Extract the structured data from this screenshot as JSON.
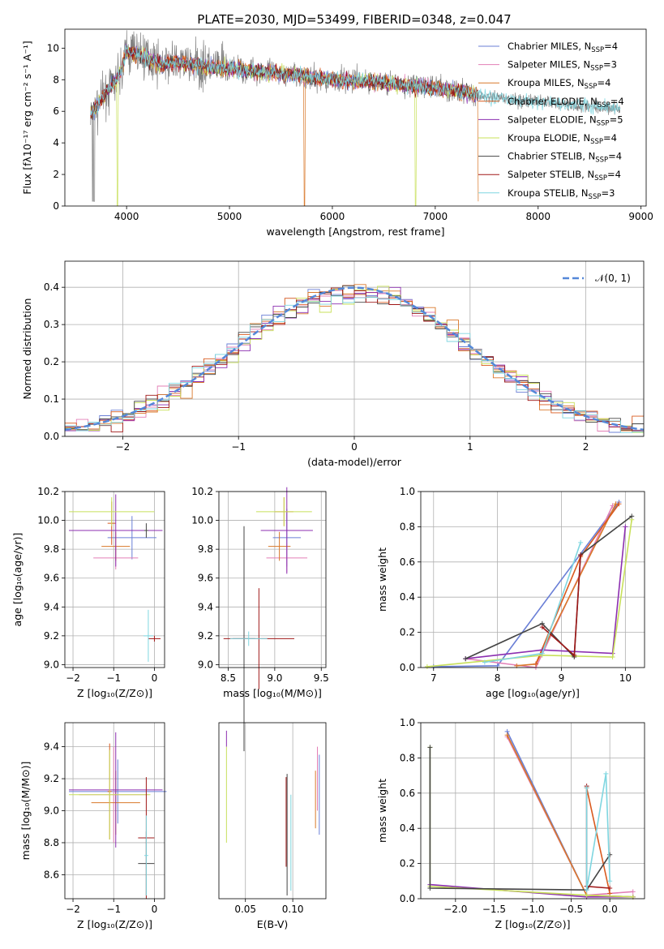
{
  "colors": {
    "chabrier_miles": "#6a7fd6",
    "salpeter_miles": "#e37fb6",
    "kroupa_miles": "#d9782a",
    "chabrier_elodie": "#d95a1e",
    "salpeter_elodie": "#8c2fb0",
    "kroupa_elodie": "#c8e05a",
    "chabrier_stelib": "#444444",
    "salpeter_stelib": "#a01818",
    "kroupa_stelib": "#7fd6e0",
    "data_spectrum": "#808080",
    "normal": "#5588d8",
    "grid": "#b0b0b0"
  },
  "legend_entries": [
    {
      "text": "Chabrier MILES, N",
      "sub": "SSP",
      "tail": "=4",
      "color": "#6a7fd6"
    },
    {
      "text": "Salpeter MILES, N",
      "sub": "SSP",
      "tail": "=3",
      "color": "#e37fb6"
    },
    {
      "text": "Kroupa MILES, N",
      "sub": "SSP",
      "tail": "=4",
      "color": "#d9782a"
    },
    {
      "text": "Chabrier ELODIE, N",
      "sub": "SSP",
      "tail": "=4",
      "color": "#d95a1e"
    },
    {
      "text": "Salpeter ELODIE, N",
      "sub": "SSP",
      "tail": "=5",
      "color": "#8c2fb0"
    },
    {
      "text": "Kroupa ELODIE, N",
      "sub": "SSP",
      "tail": "=4",
      "color": "#c8e05a"
    },
    {
      "text": "Chabrier STELIB, N",
      "sub": "SSP",
      "tail": "=4",
      "color": "#444444"
    },
    {
      "text": "Salpeter STELIB, N",
      "sub": "SSP",
      "tail": "=4",
      "color": "#a01818"
    },
    {
      "text": "Kroupa STELIB, N",
      "sub": "SSP",
      "tail": "=3",
      "color": "#7fd6e0"
    }
  ],
  "chart_data": [
    {
      "type": "line",
      "title": "PLATE=2030, MJD=53499, FIBERID=0348, z=0.047",
      "xlabel": "wavelength [Angstrom, rest frame]",
      "ylabel": "Flux [fλ10⁻¹⁷ erg cm⁻² s⁻¹ A⁻¹]",
      "xlim": [
        3400,
        9050
      ],
      "ylim": [
        0,
        11.2
      ],
      "xticks": [
        4000,
        5000,
        6000,
        7000,
        8000,
        9000
      ],
      "yticks": [
        0,
        2,
        4,
        6,
        8,
        10
      ],
      "legend_position": "upper right",
      "spectrum_x": [
        3650,
        3700,
        3800,
        3900,
        3950,
        4000,
        4100,
        4200,
        4300,
        4500,
        4800,
        5000,
        5500,
        6000,
        6500,
        7000,
        7300,
        7500,
        8000,
        8500,
        8800
      ],
      "spectrum_y": [
        5.8,
        6.2,
        7.2,
        8.0,
        8.6,
        9.8,
        9.6,
        9.4,
        9.0,
        9.1,
        8.8,
        8.7,
        8.4,
        8.0,
        7.8,
        7.5,
        7.2,
        6.9,
        6.6,
        6.3,
        6.2
      ],
      "model_end_x": [
        7420,
        7420,
        7420,
        7420,
        7420,
        7420,
        7420,
        7420,
        8800
      ]
    },
    {
      "type": "bar",
      "xlabel": "(data-model)/error",
      "ylabel": "Normed distribution",
      "xlim": [
        -2.5,
        2.5
      ],
      "ylim": [
        0,
        0.47
      ],
      "xticks": [
        -2,
        -1,
        0,
        1,
        2
      ],
      "yticks": [
        0.0,
        0.1,
        0.2,
        0.3,
        0.4
      ],
      "legend_label": "𝒩(0, 1)",
      "legend_position": "upper right",
      "bin_width": 0.1,
      "bin_start": -2.5
    },
    {
      "type": "scatter",
      "xlabel": "Z [log₁₀(Z/Z⊙)]",
      "ylabel": "age  [log₁₀(age/yr)]",
      "xlim": [
        -2.2,
        0.25
      ],
      "ylim": [
        8.98,
        10.2
      ],
      "xticks": [
        -2,
        -1,
        0
      ],
      "yticks": [
        9.0,
        9.2,
        9.4,
        9.6,
        9.8,
        10.0,
        10.2
      ],
      "points": [
        {
          "x": -0.55,
          "y": 9.88,
          "xerr": 0.6,
          "yerr": 0.15,
          "color": "#6a7fd6"
        },
        {
          "x": -0.95,
          "y": 9.74,
          "xerr": 0.55,
          "yerr": 0.08,
          "color": "#e37fb6"
        },
        {
          "x": -0.95,
          "y": 9.82,
          "xerr": 0.35,
          "yerr": 0.1,
          "color": "#d9782a"
        },
        {
          "x": -1.05,
          "y": 9.98,
          "xerr": 0.1,
          "yerr": 0.15,
          "color": "#d95a1e"
        },
        {
          "x": -0.95,
          "y": 9.93,
          "xerr": 1.15,
          "yerr": 0.25,
          "color": "#8c2fb0"
        },
        {
          "x": -1.05,
          "y": 10.06,
          "xerr": 1.05,
          "yerr": 0.1,
          "color": "#c8e05a"
        },
        {
          "x": -0.2,
          "y": 9.93,
          "xerr": 0.05,
          "yerr": 0.05,
          "color": "#444444"
        },
        {
          "x": 0.0,
          "y": 9.18,
          "xerr": 0.15,
          "yerr": 0.02,
          "color": "#a01818"
        },
        {
          "x": -0.15,
          "y": 9.2,
          "xerr": 0.12,
          "yerr": 0.18,
          "color": "#7fd6e0"
        }
      ]
    },
    {
      "type": "scatter",
      "xlabel": "mass [log₁₀(M/M⊙)]",
      "ylabel": "",
      "xlim": [
        8.4,
        9.55
      ],
      "ylim": [
        8.98,
        10.2
      ],
      "xticks": [
        8.5,
        9.0,
        9.5
      ],
      "yticks": [
        9.0,
        9.2,
        9.4,
        9.6,
        9.8,
        10.0,
        10.2
      ],
      "points": [
        {
          "x": 9.13,
          "y": 9.88,
          "xerr": 0.15,
          "yerr": 0.2,
          "color": "#6a7fd6"
        },
        {
          "x": 9.13,
          "y": 9.74,
          "xerr": 0.22,
          "yerr": 0.1,
          "color": "#e37fb6"
        },
        {
          "x": 9.05,
          "y": 9.82,
          "xerr": 0.12,
          "yerr": 0.1,
          "color": "#d9782a"
        },
        {
          "x": 9.1,
          "y": 10.06,
          "xerr": 0.1,
          "yerr": 0.1,
          "color": "#d95a1e"
        },
        {
          "x": 9.13,
          "y": 9.93,
          "xerr": 0.28,
          "yerr": 0.3,
          "color": "#8c2fb0"
        },
        {
          "x": 9.1,
          "y": 10.06,
          "xerr": 0.3,
          "yerr": 0.1,
          "color": "#c8e05a"
        },
        {
          "x": 8.67,
          "y": 9.18,
          "xerr": 0.12,
          "yerr": 0.78,
          "color": "#444444"
        },
        {
          "x": 8.83,
          "y": 9.18,
          "xerr": 0.38,
          "yerr": 0.35,
          "color": "#a01818"
        },
        {
          "x": 8.72,
          "y": 9.18,
          "xerr": 0.2,
          "yerr": 0.05,
          "color": "#7fd6e0"
        }
      ]
    },
    {
      "type": "line",
      "xlabel": "age  [log₁₀(age/yr)]",
      "ylabel": "mass weight",
      "xlim": [
        6.8,
        10.3
      ],
      "ylim": [
        0,
        1.0
      ],
      "xticks": [
        7,
        8,
        9,
        10
      ],
      "yticks": [
        0.0,
        0.2,
        0.4,
        0.6,
        0.8,
        1.0
      ],
      "series": [
        {
          "color": "#6a7fd6",
          "x": [
            7.0,
            8.0,
            9.9
          ],
          "y": [
            0.005,
            0.01,
            0.94
          ]
        },
        {
          "color": "#e37fb6",
          "x": [
            7.5,
            8.6,
            9.8
          ],
          "y": [
            0.05,
            0.0,
            0.92
          ]
        },
        {
          "color": "#d9782a",
          "x": [
            8.3,
            8.6,
            9.85
          ],
          "y": [
            0.01,
            0.02,
            0.93
          ]
        },
        {
          "color": "#d95a1e",
          "x": [
            8.6,
            9.3,
            9.9
          ],
          "y": [
            0.02,
            0.63,
            0.93
          ]
        },
        {
          "color": "#8c2fb0",
          "x": [
            7.5,
            8.7,
            9.8,
            10.0
          ],
          "y": [
            0.05,
            0.1,
            0.08,
            0.8
          ]
        },
        {
          "color": "#c8e05a",
          "x": [
            6.9,
            8.7,
            9.8,
            10.1
          ],
          "y": [
            0.005,
            0.07,
            0.06,
            0.84
          ]
        },
        {
          "color": "#444444",
          "x": [
            7.5,
            8.7,
            9.2,
            9.3,
            10.1
          ],
          "y": [
            0.05,
            0.25,
            0.06,
            0.64,
            0.86
          ]
        },
        {
          "color": "#a01818",
          "x": [
            8.7,
            9.2,
            9.3
          ],
          "y": [
            0.23,
            0.07,
            0.64
          ]
        },
        {
          "color": "#7fd6e0",
          "x": [
            7.8,
            8.7,
            9.3
          ],
          "y": [
            0.03,
            0.08,
            0.71
          ]
        }
      ]
    },
    {
      "type": "scatter",
      "xlabel": "Z [log₁₀(Z/Z⊙)]",
      "ylabel": "mass [log₁₀(M/M⊙)]",
      "xlim": [
        -2.2,
        0.25
      ],
      "ylim": [
        8.45,
        9.55
      ],
      "xticks": [
        -2,
        -1,
        0
      ],
      "yticks": [
        8.6,
        8.8,
        9.0,
        9.2,
        9.4
      ],
      "points": [
        {
          "x": -0.9,
          "y": 9.12,
          "xerr": 1.2,
          "yerr": 0.2,
          "color": "#6a7fd6"
        },
        {
          "x": -1.0,
          "y": 9.1,
          "xerr": 0.85,
          "yerr": 0.3,
          "color": "#e37fb6"
        },
        {
          "x": -0.95,
          "y": 9.05,
          "xerr": 0.6,
          "yerr": 0.2,
          "color": "#d9782a"
        },
        {
          "x": -1.1,
          "y": 9.12,
          "xerr": 0.05,
          "yerr": 0.3,
          "color": "#d95a1e"
        },
        {
          "x": -0.95,
          "y": 9.13,
          "xerr": 1.15,
          "yerr": 0.36,
          "color": "#8c2fb0"
        },
        {
          "x": -1.1,
          "y": 9.1,
          "xerr": 1.0,
          "yerr": 0.28,
          "color": "#c8e05a"
        },
        {
          "x": -0.2,
          "y": 8.67,
          "xerr": 0.2,
          "yerr": 0.2,
          "color": "#444444"
        },
        {
          "x": -0.2,
          "y": 8.83,
          "xerr": 0.2,
          "yerr": 0.38,
          "color": "#a01818"
        },
        {
          "x": -0.2,
          "y": 8.72,
          "xerr": 0.05,
          "yerr": 0.25,
          "color": "#7fd6e0"
        }
      ]
    },
    {
      "type": "scatter",
      "xlabel": "E(B-V)",
      "ylabel": "",
      "xlim": [
        0.022,
        0.135
      ],
      "ylim": [
        8.45,
        9.55
      ],
      "xticks": [
        0.05,
        0.1
      ],
      "points": [
        {
          "x": 0.128,
          "y": 9.1,
          "yerr": 0.25,
          "color": "#6a7fd6"
        },
        {
          "x": 0.126,
          "y": 9.2,
          "yerr": 0.2,
          "color": "#e37fb6"
        },
        {
          "x": 0.124,
          "y": 9.07,
          "yerr": 0.18,
          "color": "#d9782a"
        },
        {
          "x": 0.03,
          "y": 9.45,
          "yerr": 0.05,
          "color": "#8c2fb0"
        },
        {
          "x": 0.03,
          "y": 9.1,
          "yerr": 0.3,
          "color": "#c8e05a"
        },
        {
          "x": 0.094,
          "y": 8.85,
          "yerr": 0.38,
          "color": "#444444"
        },
        {
          "x": 0.093,
          "y": 8.93,
          "yerr": 0.28,
          "color": "#a01818"
        },
        {
          "x": 0.098,
          "y": 8.8,
          "yerr": 0.3,
          "color": "#7fd6e0"
        }
      ]
    },
    {
      "type": "line",
      "xlabel": "Z [log₁₀(Z/Z⊙)]",
      "ylabel": "mass weight",
      "xlim": [
        -2.45,
        0.45
      ],
      "ylim": [
        0,
        1.0
      ],
      "xticks": [
        -2.0,
        -1.5,
        -1.0,
        -0.5,
        0.0
      ],
      "yticks": [
        0.0,
        0.2,
        0.4,
        0.6,
        0.8,
        1.0
      ],
      "series": [
        {
          "color": "#6a7fd6",
          "x": [
            -1.33,
            -0.3,
            0.3
          ],
          "y": [
            0.95,
            0.02,
            0.01
          ]
        },
        {
          "color": "#e37fb6",
          "x": [
            -1.33,
            -0.3,
            0.3
          ],
          "y": [
            0.92,
            0.02,
            0.04
          ]
        },
        {
          "color": "#d9782a",
          "x": [
            -1.33,
            -0.3,
            0.3
          ],
          "y": [
            0.93,
            0.02,
            0.01
          ]
        },
        {
          "color": "#d95a1e",
          "x": [
            -0.3,
            0.0
          ],
          "y": [
            0.63,
            0.03
          ]
        },
        {
          "color": "#8c2fb0",
          "x": [
            -2.33,
            -0.3,
            0.3
          ],
          "y": [
            0.08,
            0.01,
            0.01
          ]
        },
        {
          "color": "#c8e05a",
          "x": [
            -2.33,
            -2.33,
            -0.3,
            0.3
          ],
          "y": [
            0.86,
            0.07,
            0.02,
            0.01
          ]
        },
        {
          "color": "#444444",
          "x": [
            -2.33,
            -2.33,
            -0.3,
            0.0
          ],
          "y": [
            0.86,
            0.06,
            0.05,
            0.25
          ]
        },
        {
          "color": "#a01818",
          "x": [
            -0.3,
            -0.3,
            0.0
          ],
          "y": [
            0.64,
            0.07,
            0.06
          ]
        },
        {
          "color": "#7fd6e0",
          "x": [
            -0.3,
            -0.3,
            -0.05,
            0.0
          ],
          "y": [
            0.63,
            0.05,
            0.71,
            0.1
          ]
        }
      ]
    }
  ]
}
